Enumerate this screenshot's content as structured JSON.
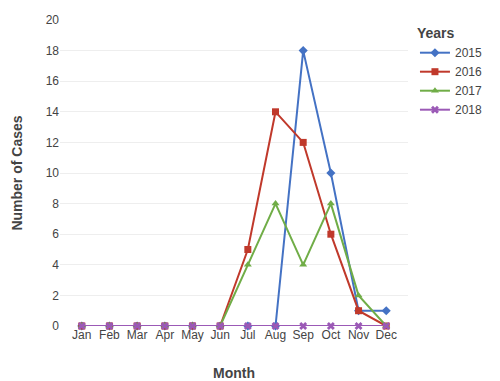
{
  "chart_data": {
    "type": "line",
    "xlabel": "Month",
    "ylabel": "Number of Cases",
    "legend_title": "Years",
    "categories": [
      "Jan",
      "Feb",
      "Mar",
      "Apr",
      "May",
      "Jun",
      "Jul",
      "Aug",
      "Sep",
      "Oct",
      "Nov",
      "Dec"
    ],
    "series": [
      {
        "name": "2015",
        "color": "#4472C4",
        "marker": "diamond",
        "values": [
          0,
          0,
          0,
          0,
          0,
          0,
          0,
          0,
          18,
          10,
          1,
          1
        ]
      },
      {
        "name": "2016",
        "color": "#C0392B",
        "marker": "square",
        "values": [
          0,
          0,
          0,
          0,
          0,
          0,
          5,
          14,
          12,
          6,
          1,
          0
        ]
      },
      {
        "name": "2017",
        "color": "#70AD47",
        "marker": "triangle-up",
        "values": [
          0,
          0,
          0,
          0,
          0,
          0,
          4,
          8,
          4,
          8,
          2,
          0
        ]
      },
      {
        "name": "2018",
        "color": "#9B59B6",
        "marker": "x",
        "values": [
          0,
          0,
          0,
          0,
          0,
          0,
          0,
          0,
          0,
          0,
          0,
          0
        ]
      }
    ],
    "ylim": [
      0,
      20
    ],
    "yticks": [
      0,
      2,
      4,
      6,
      8,
      10,
      12,
      14,
      16,
      18,
      20
    ],
    "grid": true,
    "legend": "right"
  }
}
